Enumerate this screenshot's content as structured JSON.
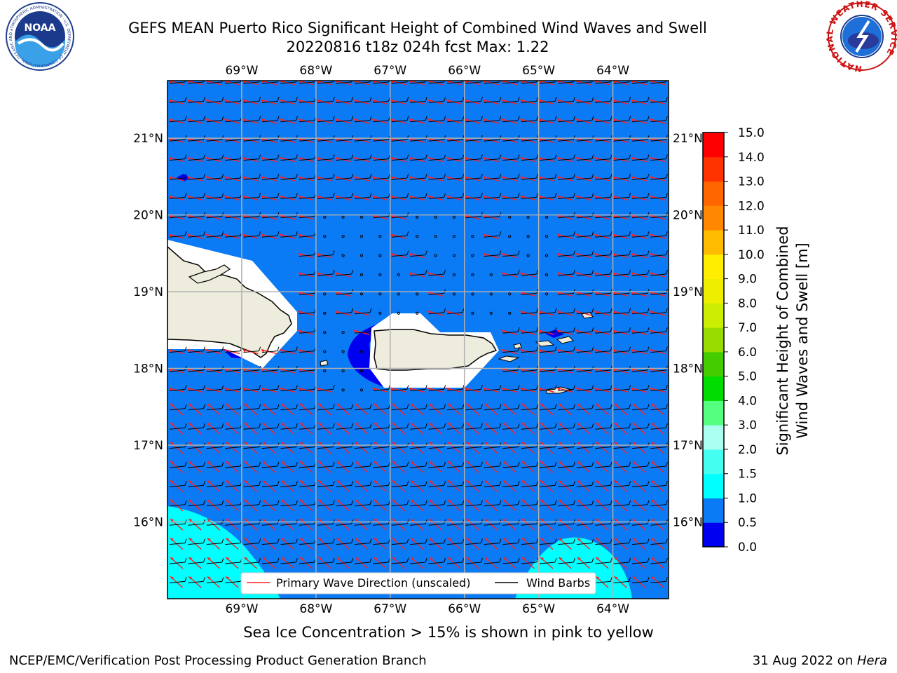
{
  "title": {
    "line1": "GEFS MEAN Puerto Rico Significant Height of Combined Wind Waves and Swell",
    "line2": "20220816 t18z 024h fcst   Max: 1.22"
  },
  "map": {
    "lon_labels": [
      "69°W",
      "68°W",
      "67°W",
      "66°W",
      "65°W",
      "64°W"
    ],
    "lat_labels": [
      "21°N",
      "20°N",
      "19°N",
      "18°N",
      "17°N",
      "16°N"
    ],
    "lon_range": [
      -70.0,
      -63.25
    ],
    "lat_range": [
      15.0,
      21.75
    ],
    "grid": true,
    "background_color": "#0a7af5",
    "land_color": "#eeecdc"
  },
  "legend": {
    "wave_label": "Primary Wave Direction (unscaled)",
    "barb_label": "Wind Barbs",
    "wave_color": "#ff2020",
    "barb_color": "#000000"
  },
  "colorbar": {
    "label_line1": "Significant Height of Combined",
    "label_line2": "Wind Waves and Swell [m]",
    "ticks": [
      "0.0",
      "0.5",
      "1.0",
      "1.5",
      "2.0",
      "3.0",
      "4.0",
      "5.0",
      "6.0",
      "7.0",
      "8.0",
      "9.0",
      "10.0",
      "11.0",
      "12.0",
      "13.0",
      "14.0",
      "15.0"
    ],
    "colors": [
      "#0000f0",
      "#0a7af5",
      "#00ffff",
      "#44fff0",
      "#aafff0",
      "#55ff80",
      "#00dd00",
      "#44cc00",
      "#99dd00",
      "#ccee00",
      "#eeee00",
      "#ffee00",
      "#ffbb00",
      "#ff8800",
      "#ff6600",
      "#ff3300",
      "#ff0000"
    ]
  },
  "logos": {
    "noaa_text": "NOAA",
    "noaa_ring": "NATIONAL OCEANIC AND ATMOSPHERIC ADMINISTRATION · U.S. DEPARTMENT OF COMMERCE",
    "nws_ring": "NATIONAL WEATHER SERVICE"
  },
  "footer": {
    "sea_ice_note": "Sea Ice Concentration > 15% is shown in pink to yellow",
    "left": "NCEP/EMC/Verification Post Processing Product Generation Branch",
    "right_prefix": "31 Aug 2022 on ",
    "right_host": "Hera"
  }
}
